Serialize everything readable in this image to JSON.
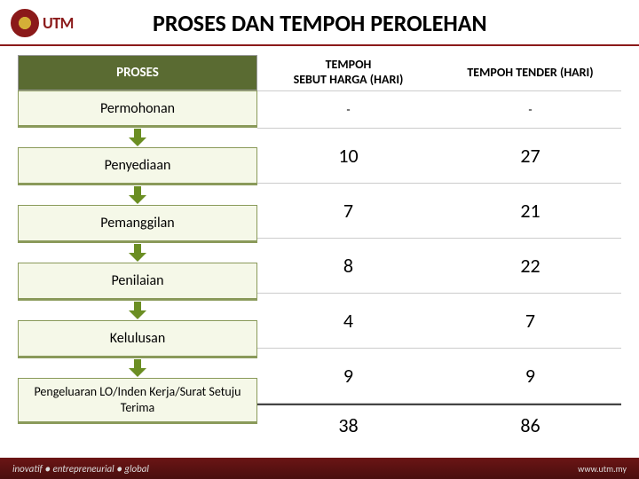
{
  "logo": {
    "text": "UTM"
  },
  "title": "PROSES  DAN TEMPOH PEROLEHAN",
  "columns": {
    "proses": "PROSES",
    "harga": "TEMPOH\nSEBUT HARGA (HARI)",
    "tender": "TEMPOH TENDER (HARI)"
  },
  "rows": [
    {
      "label": "Permohonan",
      "harga": "-",
      "tender": "-",
      "dash": true
    },
    {
      "label": "Penyediaan",
      "harga": "10",
      "tender": "27"
    },
    {
      "label": "Pemanggilan",
      "harga": "7",
      "tender": "21"
    },
    {
      "label": "Penilaian",
      "harga": "8",
      "tender": "22"
    },
    {
      "label": "Kelulusan",
      "harga": "4",
      "tender": "7"
    },
    {
      "label": "Pengeluaran LO/Inden Kerja/Surat Setuju Terima",
      "harga": "9",
      "tender": "9",
      "last": true
    }
  ],
  "totals": {
    "harga": "38",
    "tender": "86"
  },
  "footer": {
    "left": "inovatif ● entrepreneurial ● global",
    "right": "www.utm.my"
  },
  "colors": {
    "maroon": "#8b1a1a",
    "olive_dark": "#5a6b32",
    "olive_light": "#f5f8e8",
    "olive_border": "#8a9a5a",
    "arrow": "#6b8e23"
  }
}
